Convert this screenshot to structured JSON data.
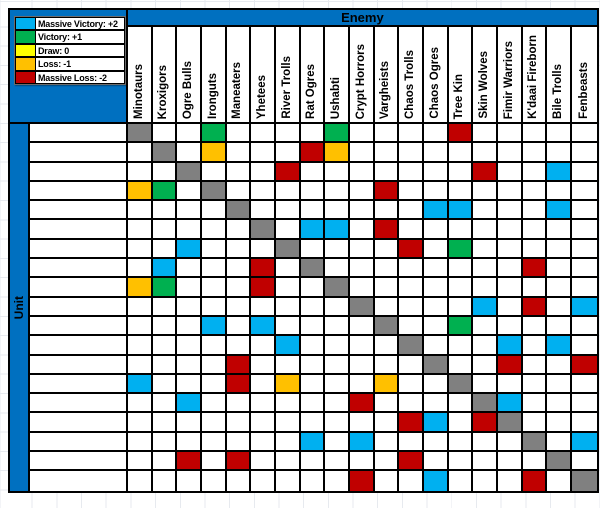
{
  "enemy_axis_label": "Enemy",
  "unit_axis_label": "Unit",
  "header_bg": "#0070C0",
  "legend": [
    {
      "label": "Massive Victory: +2",
      "color": "#00B0F0",
      "code": "c"
    },
    {
      "label": "Victory: +1",
      "color": "#00B050",
      "code": "g"
    },
    {
      "label": "Draw: 0",
      "color": "#FFFF00",
      "code": "y"
    },
    {
      "label": "Loss: -1",
      "color": "#FFC000",
      "code": "o"
    },
    {
      "label": "Massive Loss: -2",
      "color": "#C00000",
      "code": "r"
    }
  ],
  "units": [
    "Minotaurs",
    "Kroxigors",
    "Ogre Bulls",
    "Ironguts",
    "Maneaters",
    "Yhetees",
    "River Trolls",
    "Rat Ogres",
    "Ushabti",
    "Crypt Horrors",
    "Vargheists",
    "Chaos Trolls",
    "Chaos Ogres",
    "Tree Kin",
    "Skin Wolves",
    "Fimir Warriors",
    "K'daai Fireborn",
    "Bile Trolls",
    "Fenbeasts"
  ],
  "cell_colors": {
    ".": "#FFFFFF",
    "c": "#00B0F0",
    "g": "#00B050",
    "y": "#FFFF00",
    "o": "#FFC000",
    "r": "#C00000",
    "x": "#808080"
  },
  "matrix_codes": [
    "x..g....g....r.....",
    ".x.o...ro..........",
    "..x...r.......r..c.",
    "og.x......r........",
    "....x.......cc...c.",
    ".....x.cc.r........",
    "..c...x....r.g.....",
    ".c...r.x........r..",
    "og...r..x..........",
    ".........x....c.r.c",
    "...c.c....x..g.....",
    "......c....x...c.c.",
    "....r.......x..r..r",
    "c...r.o...o..x.....",
    "..c......r....xc...",
    "...........rc.rx...",
    ".......c.c......x.c",
    "..r.r......r.....x.",
    ".........r..c...r.x"
  ]
}
